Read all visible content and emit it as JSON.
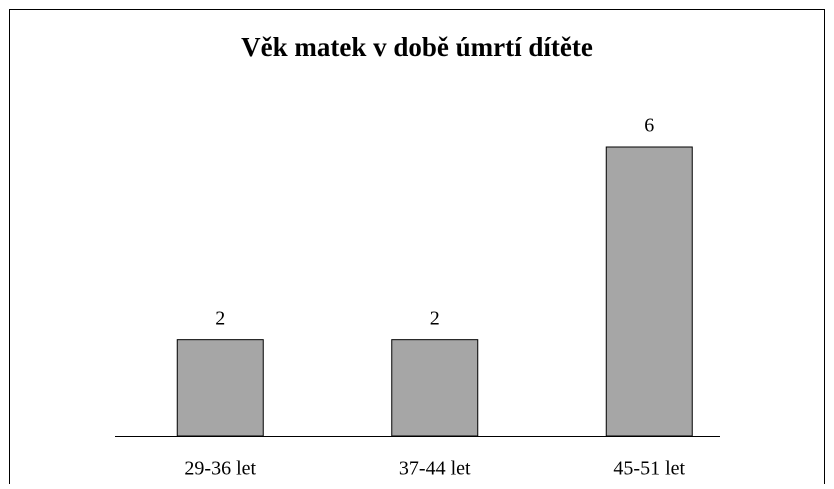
{
  "chart_data": {
    "type": "bar",
    "title": "Věk matek v době úmrtí dítěte",
    "categories": [
      "29-36 let",
      "37-44 let",
      "45-51 let"
    ],
    "values": [
      2,
      2,
      6
    ],
    "color": "#a6a6a6",
    "ylim": [
      0,
      6
    ]
  }
}
